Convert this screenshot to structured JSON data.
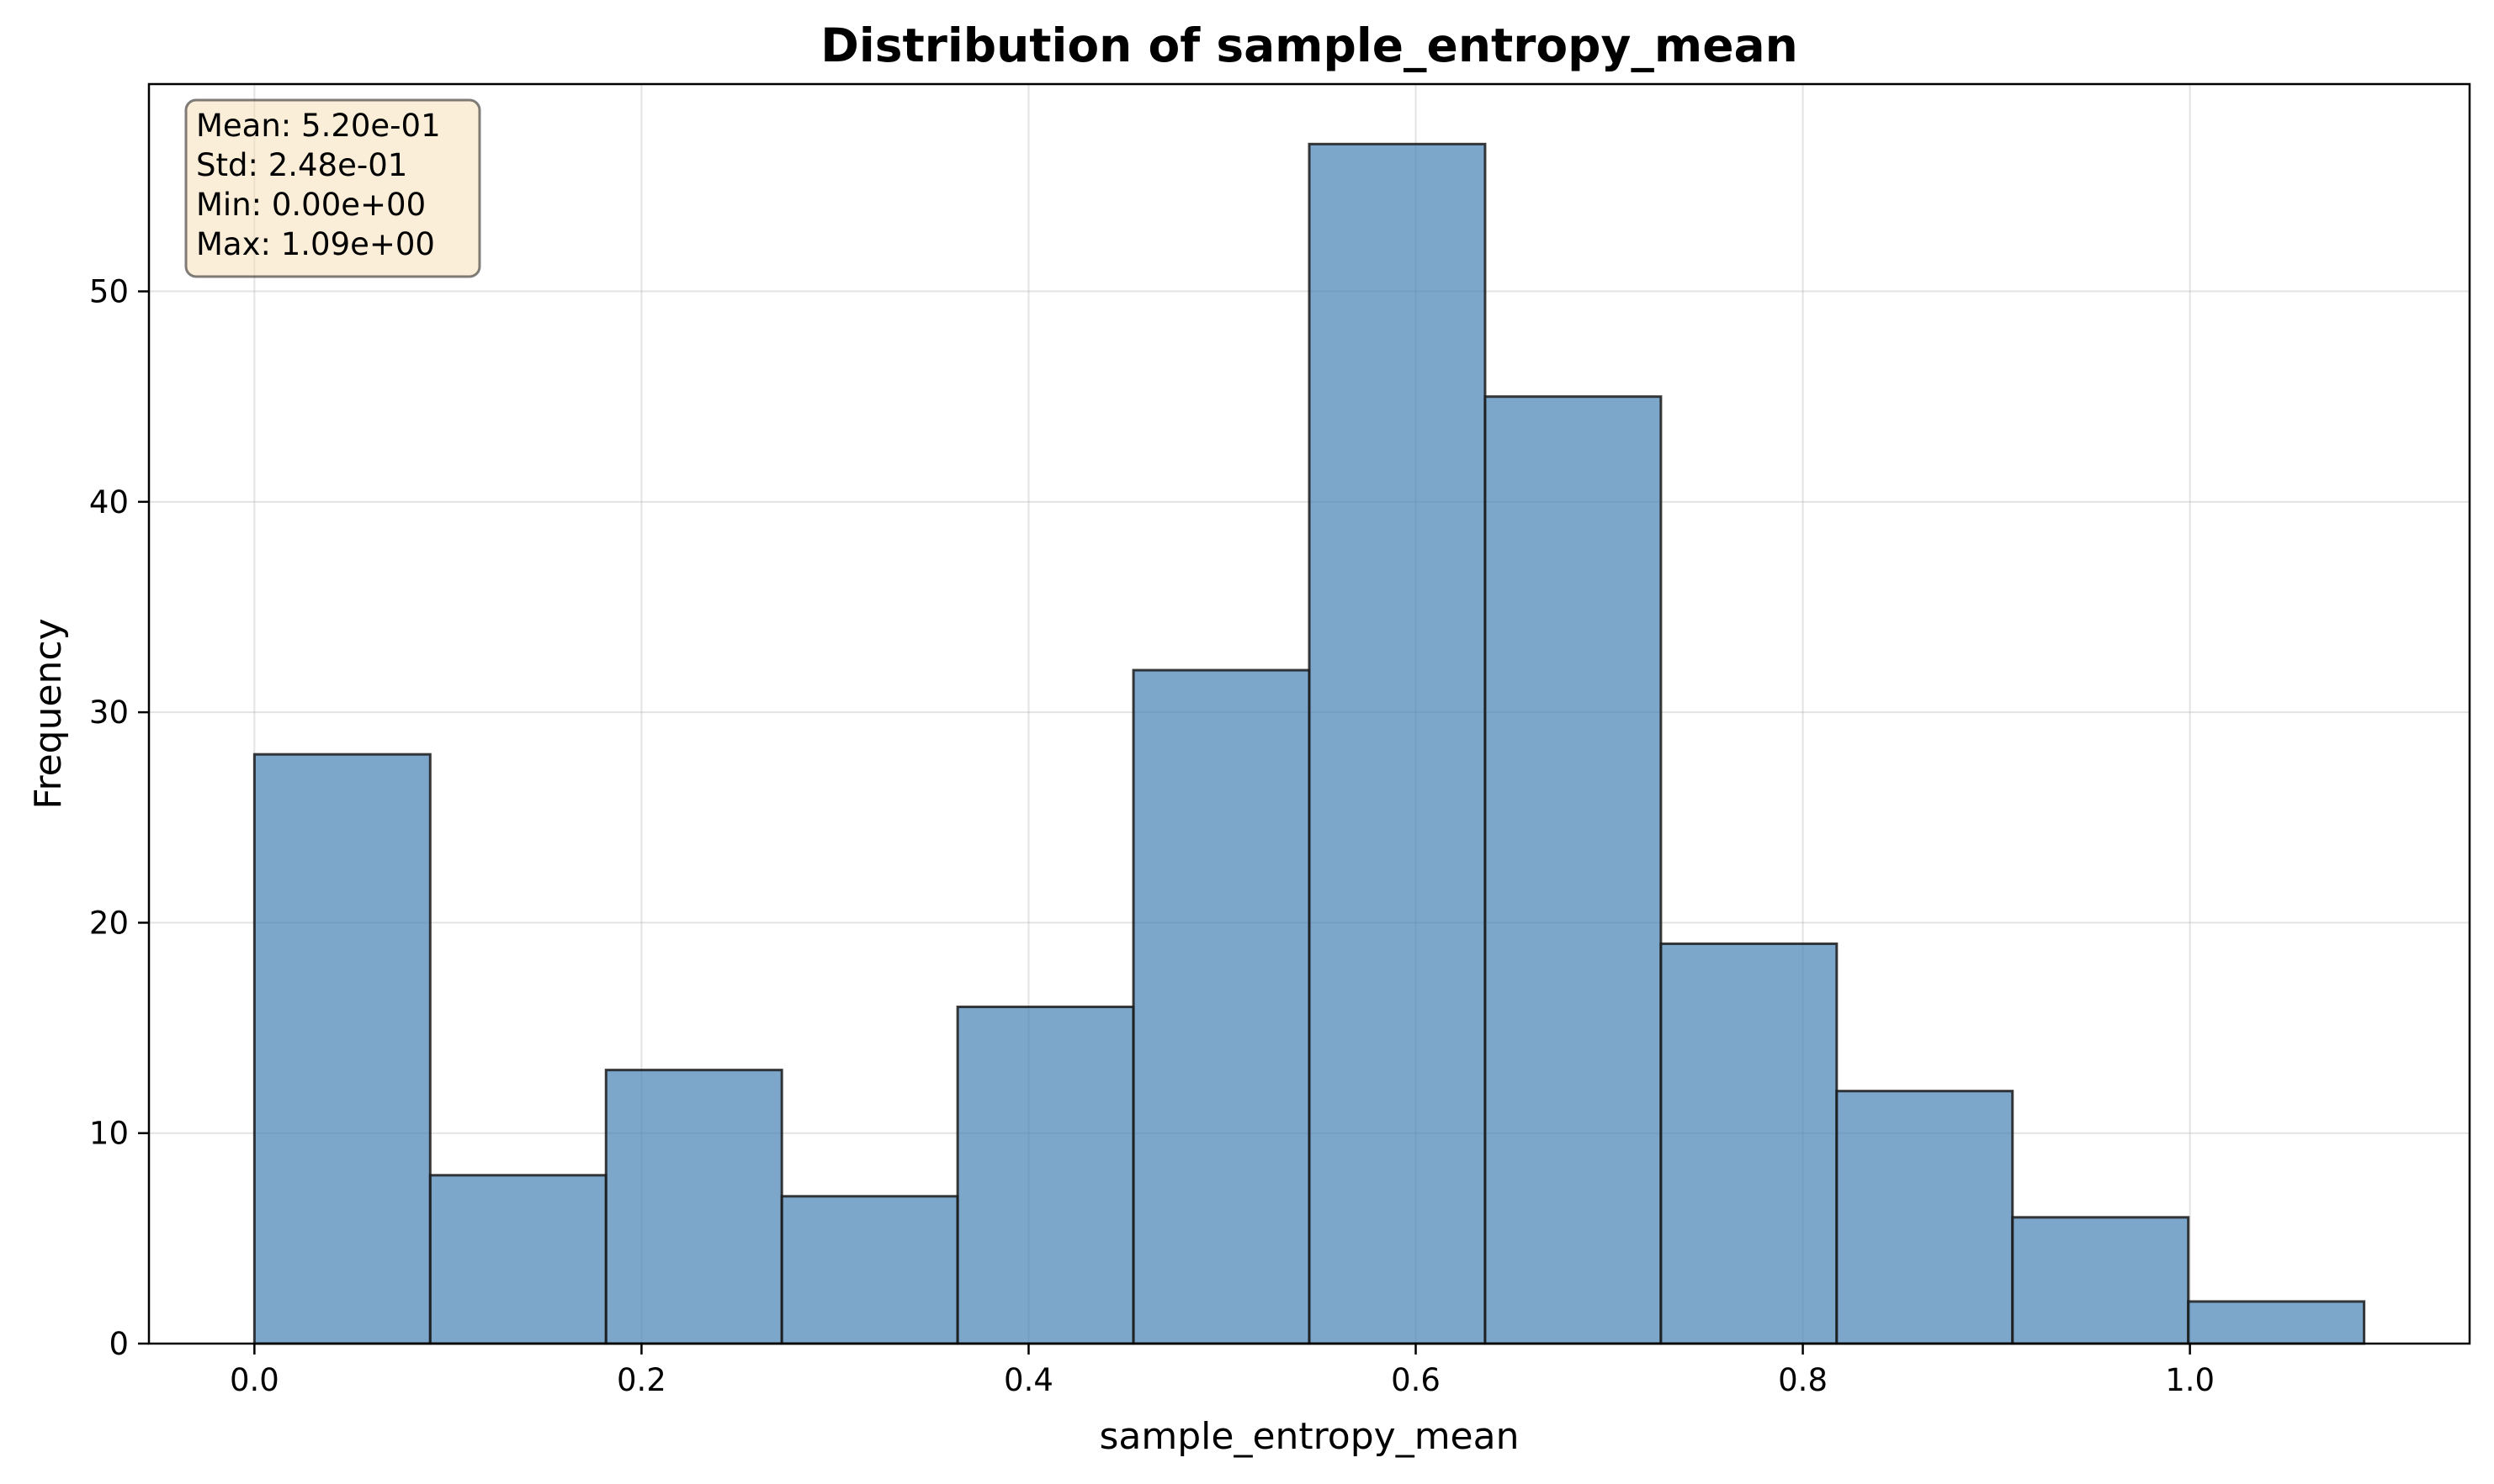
{
  "chart_data": {
    "type": "bar",
    "title": "Distribution of sample_entropy_mean",
    "xlabel": "sample_entropy_mean",
    "ylabel": "Frequency",
    "bin_edges": [
      0.0,
      0.09083,
      0.18167,
      0.2725,
      0.36333,
      0.45417,
      0.545,
      0.63583,
      0.72667,
      0.8175,
      0.90833,
      0.99917,
      1.09
    ],
    "values": [
      28,
      8,
      13,
      7,
      16,
      32,
      57,
      45,
      19,
      12,
      6,
      2
    ],
    "xlim": [
      -0.0545,
      1.1445
    ],
    "ylim": [
      0,
      59.85
    ],
    "xticks": [
      0.0,
      0.2,
      0.4,
      0.6,
      0.8,
      1.0
    ],
    "xtick_labels": [
      "0.0",
      "0.2",
      "0.4",
      "0.6",
      "0.8",
      "1.0"
    ],
    "yticks": [
      0,
      10,
      20,
      30,
      40,
      50
    ],
    "ytick_labels": [
      "0",
      "10",
      "20",
      "30",
      "40",
      "50"
    ],
    "grid": true,
    "bar_color": "#4682b4",
    "bar_alpha": 0.7,
    "edge_color": "#000000",
    "stats_box": {
      "placement": "top-left",
      "background": "#f5deb3",
      "lines": [
        "Mean: 5.20e-01",
        "Std: 2.48e-01",
        "Min: 0.00e+00",
        "Max: 1.09e+00"
      ]
    }
  }
}
